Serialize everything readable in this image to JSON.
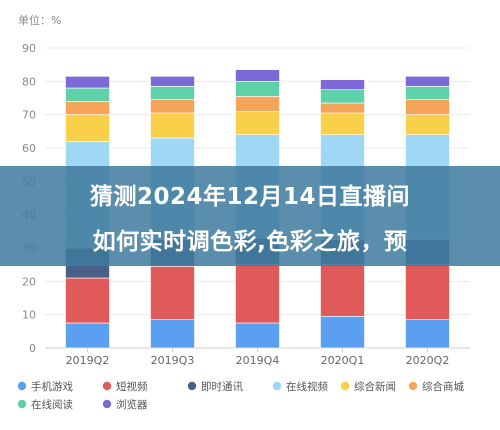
{
  "chart_data": {
    "type": "bar",
    "stacked": true,
    "unit_label": "单位：%",
    "categories": [
      "2019Q2",
      "2019Q3",
      "2019Q4",
      "2020Q1",
      "2020Q2"
    ],
    "ylim": [
      0,
      90
    ],
    "yticks": [
      0,
      10,
      20,
      30,
      40,
      50,
      60,
      70,
      80,
      90
    ],
    "grid": true,
    "legend_position": "bottom",
    "series": [
      {
        "name": "手机游戏",
        "color": "#5b9ff0",
        "values": [
          7.5,
          8.5,
          7.5,
          9.5,
          8.5
        ]
      },
      {
        "name": "短视频",
        "color": "#e05a5a",
        "values": [
          13.5,
          16,
          17.5,
          15.5,
          16.5
        ]
      },
      {
        "name": "即时通讯",
        "color": "#4a5f87",
        "values": [
          9,
          8,
          8,
          7.5,
          7.5
        ]
      },
      {
        "name": "在线视频",
        "color": "#9fd8f5",
        "values": [
          32,
          30.5,
          31,
          31.5,
          31.5
        ]
      },
      {
        "name": "综合新闻",
        "color": "#f8d04a",
        "values": [
          8,
          7.5,
          7,
          6.5,
          6
        ]
      },
      {
        "name": "综合商城",
        "color": "#f5a55a",
        "values": [
          4,
          4,
          4.5,
          3,
          4.5
        ]
      },
      {
        "name": "在线阅读",
        "color": "#5fd1a9",
        "values": [
          4,
          4,
          4.5,
          4,
          4
        ]
      },
      {
        "name": "浏览器",
        "color": "#7c68d6",
        "values": [
          3.5,
          3,
          3.5,
          3,
          3
        ]
      }
    ]
  },
  "overlay": {
    "line1": "猜测2024年12月14日直播间",
    "line2": "如何实时调色彩,色彩之旅，预"
  }
}
